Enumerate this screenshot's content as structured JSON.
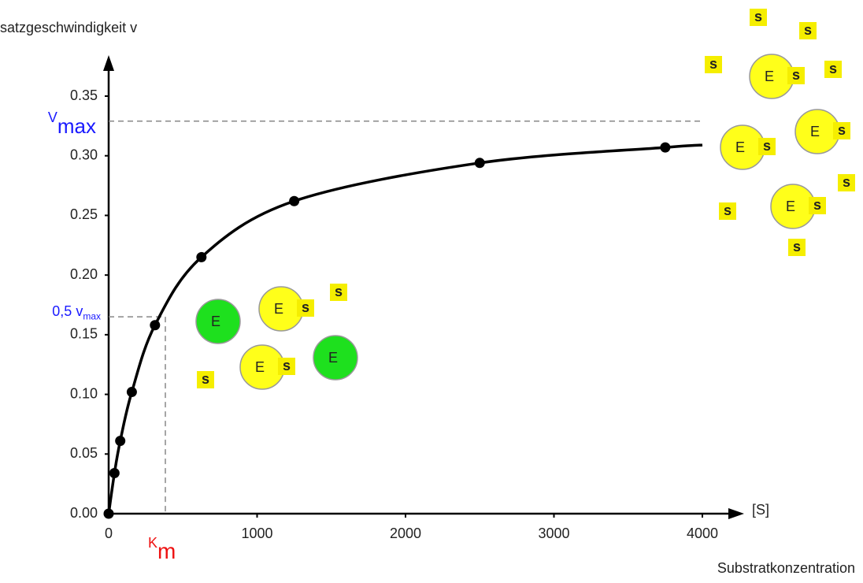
{
  "chart_data": {
    "type": "line",
    "y_label": "satzgeschwindigkeit v",
    "x_label": "Substratkonzentration",
    "x_axis_symbol": "[S]",
    "xlim": [
      0,
      4000
    ],
    "ylim": [
      0,
      0.35
    ],
    "xticks": [
      0,
      1000,
      2000,
      3000,
      4000
    ],
    "yticks": [
      {
        "value": 0,
        "label": "0.00"
      },
      {
        "value": 0.05,
        "label": "0.05"
      },
      {
        "value": 0.1,
        "label": "0.10"
      },
      {
        "value": 0.15,
        "label": "0.15"
      },
      {
        "value": 0.2,
        "label": "0.20"
      },
      {
        "value": 0.25,
        "label": "0.25"
      },
      {
        "value": 0.3,
        "label": "0.30"
      },
      {
        "value": 0.35,
        "label": "0.35"
      }
    ],
    "series": [
      {
        "color": "#000000",
        "markers": false,
        "x": [
          0,
          39,
          78,
          156,
          312,
          625,
          1250,
          2500,
          3750,
          4000
        ],
        "values": [
          0,
          0.034,
          0.061,
          0.102,
          0.158,
          0.215,
          0.262,
          0.294,
          0.307,
          0.309
        ]
      },
      {
        "color": "#000000",
        "markers": true,
        "x": [
          0,
          39,
          78,
          156,
          312,
          625,
          1250,
          2500,
          3750
        ],
        "values": [
          0,
          0.034,
          0.061,
          0.102,
          0.158,
          0.215,
          0.262,
          0.294,
          0.307
        ]
      }
    ],
    "annotations": {
      "vmax": {
        "text": "V",
        "sub": "max",
        "value": 0.329,
        "color": "#1a1aff"
      },
      "half_vmax": {
        "text": "0,5 v",
        "sub": "max",
        "value": 0.165,
        "color": "#1a1aff"
      },
      "km": {
        "text": "K",
        "sub": "m",
        "value": 382,
        "color": "#ee1111"
      }
    },
    "illustration": {
      "enzyme_label": "E",
      "substrate_label": "s"
    }
  }
}
